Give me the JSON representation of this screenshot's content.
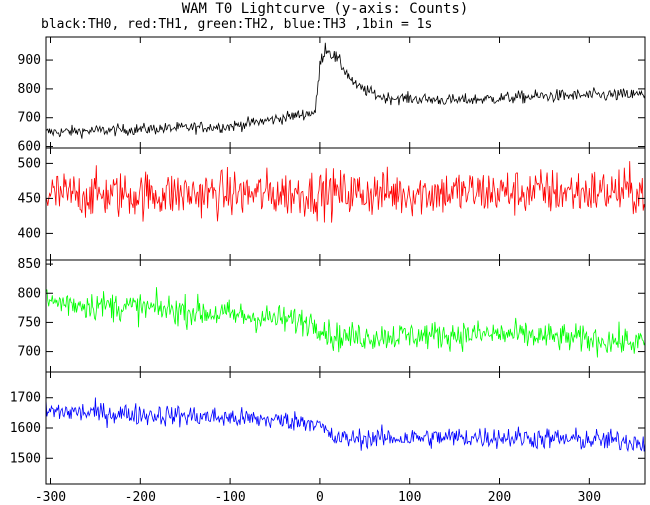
{
  "title": "WAM T0 Lightcurve (y-axis: Counts)",
  "subtitle": "black:TH0, red:TH1, green:TH2, blue:TH3 ,1bin = 1s",
  "chart_data": {
    "type": "line",
    "x": {
      "range": [
        -305,
        362
      ],
      "ticks": [
        -300,
        -200,
        -100,
        0,
        100,
        200,
        300
      ]
    },
    "grid": false,
    "legend": "none",
    "panels": [
      {
        "series": "TH0",
        "color": "#000000",
        "ylim": [
          595,
          980
        ],
        "yticks": [
          600,
          700,
          800,
          900
        ],
        "profile": [
          {
            "x": -300,
            "y": 650,
            "amp": 25
          },
          {
            "x": -100,
            "y": 670,
            "amp": 25
          },
          {
            "x": -40,
            "y": 700,
            "amp": 25
          },
          {
            "x": -5,
            "y": 720,
            "amp": 25
          },
          {
            "x": 0,
            "y": 880,
            "amp": 35
          },
          {
            "x": 6,
            "y": 945,
            "amp": 30
          },
          {
            "x": 20,
            "y": 900,
            "amp": 30
          },
          {
            "x": 40,
            "y": 810,
            "amp": 25
          },
          {
            "x": 70,
            "y": 770,
            "amp": 25
          },
          {
            "x": 150,
            "y": 760,
            "amp": 25
          },
          {
            "x": 250,
            "y": 775,
            "amp": 28
          },
          {
            "x": 362,
            "y": 780,
            "amp": 28
          }
        ]
      },
      {
        "series": "TH1",
        "color": "#ff0000",
        "ylim": [
          362,
          522
        ],
        "yticks": [
          400,
          450,
          500
        ],
        "profile": [
          {
            "x": -300,
            "y": 455,
            "amp": 42
          },
          {
            "x": 362,
            "y": 460,
            "amp": 42
          }
        ]
      },
      {
        "series": "TH2",
        "color": "#00ff00",
        "ylim": [
          665,
          857
        ],
        "yticks": [
          700,
          750,
          800,
          850
        ],
        "profile": [
          {
            "x": -300,
            "y": 785,
            "amp": 32
          },
          {
            "x": -150,
            "y": 770,
            "amp": 32
          },
          {
            "x": -5,
            "y": 750,
            "amp": 30
          },
          {
            "x": 15,
            "y": 725,
            "amp": 30
          },
          {
            "x": 200,
            "y": 730,
            "amp": 30
          },
          {
            "x": 362,
            "y": 715,
            "amp": 30
          }
        ]
      },
      {
        "series": "TH3",
        "color": "#0000ff",
        "ylim": [
          1415,
          1785
        ],
        "yticks": [
          1500,
          1600,
          1700
        ],
        "profile": [
          {
            "x": -300,
            "y": 1655,
            "amp": 45
          },
          {
            "x": -150,
            "y": 1640,
            "amp": 45
          },
          {
            "x": -5,
            "y": 1620,
            "amp": 40
          },
          {
            "x": 15,
            "y": 1565,
            "amp": 40
          },
          {
            "x": 200,
            "y": 1570,
            "amp": 45
          },
          {
            "x": 362,
            "y": 1555,
            "amp": 45
          }
        ]
      }
    ]
  }
}
